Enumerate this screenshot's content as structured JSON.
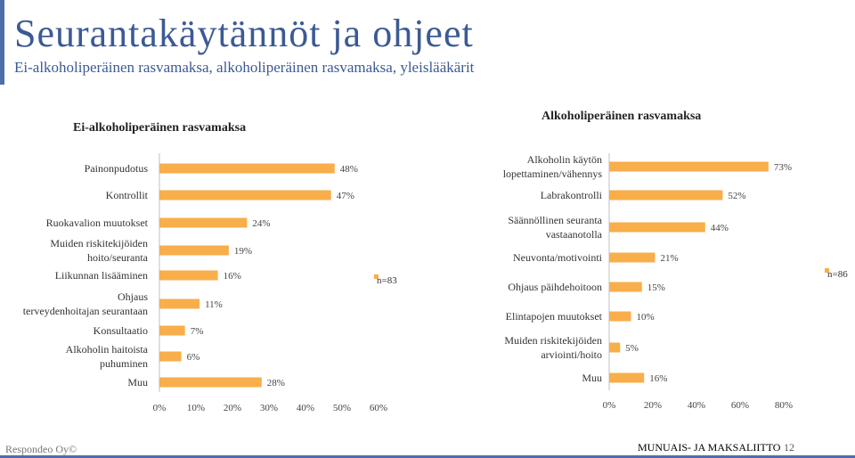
{
  "header": {
    "title": "Seurantakäytännöt ja ohjeet",
    "subtitle": "Ei-alkoholiperäinen rasvamaksa, alkoholiperäinen rasvamaksa, yleislääkärit"
  },
  "colors": {
    "bar": "#F8AE4A",
    "title": "#3C5A94",
    "axis": "#BFBFBF"
  },
  "chart_data": [
    {
      "type": "bar",
      "orientation": "horizontal",
      "title": "Ei-alkoholiperäinen rasvamaksa",
      "categories": [
        "Painonpudotus",
        "Kontrollit",
        "Ruokavalion muutokset",
        "Muiden riskitekijöiden hoito/seuranta",
        "Liikunnan lisääminen",
        "Ohjaus terveydenhoitajan seurantaan",
        "Konsultaatio",
        "Alkoholin haitoista puhuminen",
        "Muu"
      ],
      "values": [
        48,
        47,
        24,
        19,
        16,
        11,
        7,
        6,
        28
      ],
      "value_labels": [
        "48%",
        "47%",
        "24%",
        "19%",
        "16%",
        "11%",
        "7%",
        "6%",
        "28%"
      ],
      "xlim": [
        0,
        60
      ],
      "ticks": [
        "0%",
        "10%",
        "20%",
        "30%",
        "40%",
        "50%",
        "60%"
      ],
      "annotation": "n=83"
    },
    {
      "type": "bar",
      "orientation": "horizontal",
      "title": "Alkoholiperäinen rasvamaksa",
      "categories": [
        "Alkoholin käytön lopettaminen/vähennys",
        "Labrakontrolli",
        "Säännöllinen seuranta vastaanotolla",
        "Neuvonta/motivointi",
        "Ohjaus päihdehoitoon",
        "Elintapojen muutokset",
        "Muiden riskitekijöiden arviointi/hoito",
        "Muu"
      ],
      "values": [
        73,
        52,
        44,
        21,
        15,
        10,
        5,
        16
      ],
      "value_labels": [
        "73%",
        "52%",
        "44%",
        "21%",
        "15%",
        "10%",
        "5%",
        "16%"
      ],
      "xlim": [
        0,
        80
      ],
      "ticks": [
        "0%",
        "20%",
        "40%",
        "60%",
        "80%"
      ],
      "annotation": "n=86"
    }
  ],
  "footer": {
    "left": "Respondeo Oy©",
    "right": "MUNUAIS- JA MAKSALIITTO",
    "page": "12"
  }
}
